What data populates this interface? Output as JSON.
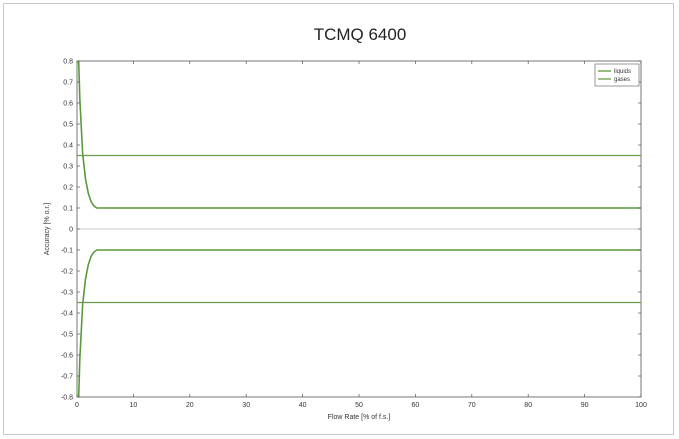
{
  "chart_data": {
    "type": "line",
    "title": "TCMQ 6400",
    "xlabel": "Flow Rate [% of f.s.]",
    "ylabel": "Accuracy [% o.r.]",
    "xlim": [
      0,
      100
    ],
    "ylim": [
      -0.8,
      0.8
    ],
    "xticks": [
      0,
      10,
      20,
      30,
      40,
      50,
      60,
      70,
      80,
      90,
      100
    ],
    "yticks": [
      -0.8,
      -0.7,
      -0.6,
      -0.5,
      -0.4,
      -0.3,
      -0.2,
      -0.1,
      0,
      0.1,
      0.2,
      0.3,
      0.4,
      0.5,
      0.6,
      0.7,
      0.8
    ],
    "grid": false,
    "legend_position": "top-right",
    "series": [
      {
        "name": "liquids",
        "color": "#5a9a3a",
        "upper": {
          "x": [
            0.3,
            0.5,
            1,
            1.5,
            2,
            2.5,
            3,
            3.5,
            4,
            5,
            100
          ],
          "y": [
            0.8,
            0.62,
            0.36,
            0.24,
            0.17,
            0.13,
            0.11,
            0.1,
            0.1,
            0.1,
            0.1
          ]
        },
        "lower": {
          "x": [
            0.3,
            0.5,
            1,
            1.5,
            2,
            2.5,
            3,
            3.5,
            4,
            5,
            100
          ],
          "y": [
            -0.8,
            -0.62,
            -0.36,
            -0.24,
            -0.17,
            -0.13,
            -0.11,
            -0.1,
            -0.1,
            -0.1,
            -0.1
          ]
        }
      },
      {
        "name": "gases",
        "color": "#6c9a4e",
        "upper": {
          "x": [
            0,
            100
          ],
          "y": [
            0.35,
            0.35
          ]
        },
        "lower": {
          "x": [
            0,
            100
          ],
          "y": [
            -0.35,
            -0.35
          ]
        }
      }
    ],
    "zero_line": {
      "y": 0,
      "color": "#c8c8c8"
    }
  }
}
